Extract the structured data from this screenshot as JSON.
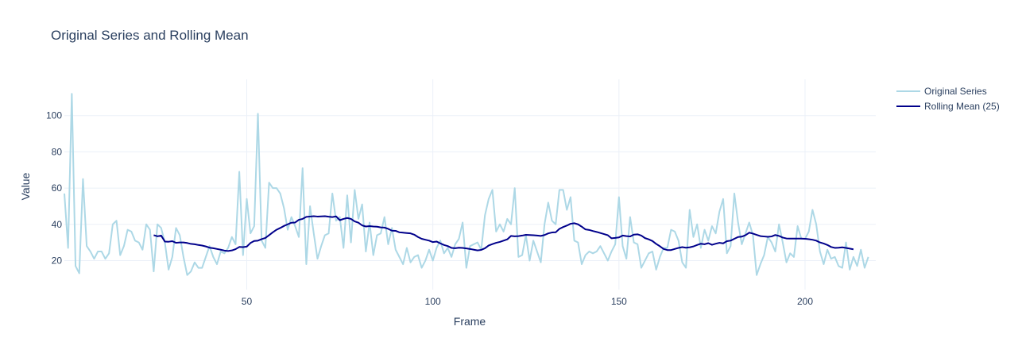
{
  "chart_data": {
    "type": "line",
    "title": "Original Series and Rolling Mean",
    "xlabel": "Frame",
    "ylabel": "Value",
    "xlim": [
      1,
      219
    ],
    "ylim": [
      4,
      120
    ],
    "x_ticks": [
      50,
      100,
      150,
      200
    ],
    "y_ticks": [
      20,
      40,
      60,
      80,
      100
    ],
    "grid": true,
    "legend_position": "top-right",
    "colors": {
      "original": "#add8e6",
      "rolling": "#00008b",
      "grid": "#ebf0f8",
      "text": "#2a3f5f"
    },
    "series": [
      {
        "name": "Original Series",
        "x_start": 1,
        "values": [
          57,
          27,
          112,
          17,
          13,
          65,
          28,
          25,
          21,
          25,
          25,
          21,
          24,
          40,
          42,
          23,
          28,
          37,
          36,
          31,
          30,
          26,
          40,
          37,
          14,
          40,
          38,
          30,
          15,
          22,
          38,
          34,
          22,
          12,
          14,
          19,
          16,
          16,
          22,
          28,
          22,
          18,
          25,
          24,
          27,
          33,
          29,
          69,
          23,
          54,
          35,
          39,
          101,
          31,
          27,
          63,
          60,
          60,
          57,
          49,
          37,
          44,
          39,
          33,
          71,
          18,
          50,
          35,
          21,
          28,
          34,
          35,
          57,
          42,
          44,
          27,
          56,
          30,
          59,
          43,
          51,
          25,
          41,
          23,
          34,
          35,
          44,
          29,
          38,
          26,
          22,
          18,
          27,
          19,
          22,
          23,
          16,
          20,
          26,
          20,
          27,
          31,
          24,
          27,
          22,
          29,
          32,
          41,
          16,
          28,
          29,
          30,
          26,
          45,
          54,
          59,
          36,
          40,
          36,
          43,
          40,
          60,
          22,
          23,
          34,
          20,
          31,
          25,
          19,
          40,
          52,
          42,
          40,
          59,
          59,
          48,
          55,
          31,
          30,
          18,
          23,
          25,
          24,
          25,
          28,
          24,
          20,
          25,
          29,
          55,
          28,
          21,
          44,
          30,
          29,
          16,
          20,
          24,
          25,
          15,
          22,
          27,
          27,
          37,
          36,
          31,
          19,
          16,
          48,
          33,
          40,
          27,
          37,
          31,
          39,
          35,
          47,
          54,
          24,
          28,
          57,
          41,
          29,
          35,
          41,
          34,
          12,
          18,
          23,
          33,
          30,
          25,
          40,
          30,
          19,
          24,
          22,
          39,
          32,
          32,
          36,
          48,
          40,
          25,
          18,
          26,
          21,
          22,
          17,
          16,
          30,
          15,
          22,
          17,
          26,
          16,
          22
        ]
      },
      {
        "name": "Rolling Mean (25)",
        "x_start": 25,
        "values": [
          34.0,
          33.4,
          33.8,
          30.5,
          30.4,
          30.7,
          29.8,
          30.0,
          30.0,
          29.7,
          29.2,
          29.0,
          28.6,
          28.3,
          27.8,
          27.1,
          26.8,
          26.4,
          26.0,
          25.5,
          25.3,
          25.6,
          26.3,
          27.5,
          27.4,
          27.7,
          29.7,
          30.8,
          31.0,
          31.8,
          32.5,
          34.0,
          35.6,
          37.0,
          38.0,
          39.1,
          40.0,
          40.9,
          41.0,
          42.5,
          43.0,
          44.1,
          44.3,
          44.5,
          44.3,
          44.4,
          44.5,
          44.2,
          44.0,
          44.4,
          42.3,
          43.0,
          43.5,
          43.0,
          41.6,
          40.9,
          39.4,
          38.8,
          39.0,
          38.8,
          38.7,
          38.3,
          38.2,
          37.5,
          36.5,
          36.4,
          35.6,
          35.4,
          35.2,
          35.0,
          34.3,
          33.0,
          32.0,
          31.5,
          31.0,
          30.2,
          30.5,
          29.5,
          28.6,
          28.0,
          27.0,
          26.8,
          27.1,
          27.0,
          26.7,
          26.4,
          26.0,
          25.6,
          25.9,
          26.8,
          28.3,
          29.1,
          29.8,
          30.3,
          31.0,
          31.7,
          33.6,
          33.4,
          33.5,
          33.8,
          34.2,
          34.1,
          34.0,
          33.8,
          33.6,
          34.1,
          35.0,
          35.5,
          35.6,
          37.5,
          38.5,
          39.3,
          40.3,
          40.6,
          40.0,
          38.7,
          37.2,
          36.9,
          36.3,
          35.8,
          35.2,
          34.6,
          34.0,
          32.3,
          32.5,
          32.8,
          33.8,
          33.5,
          33.3,
          34.3,
          34.5,
          33.8,
          32.4,
          31.7,
          30.8,
          29.2,
          27.9,
          26.4,
          25.8,
          25.8,
          26.4,
          27.0,
          27.4,
          27.1,
          27.3,
          27.8,
          28.6,
          29.3,
          29.0,
          29.6,
          28.7,
          29.3,
          29.8,
          29.5,
          30.7,
          31.0,
          32.0,
          33.0,
          33.2,
          34.0,
          35.4,
          34.9,
          34.2,
          33.5,
          33.3,
          33.1,
          33.3,
          34.1,
          33.6,
          32.7,
          32.2,
          32.1,
          32.1,
          32.1,
          32.1,
          32.0,
          31.8,
          31.5,
          31.0,
          30.0,
          29.4,
          28.6,
          27.5,
          27.0,
          27.1,
          27.3,
          27.0,
          26.6,
          26.2
        ]
      }
    ]
  }
}
